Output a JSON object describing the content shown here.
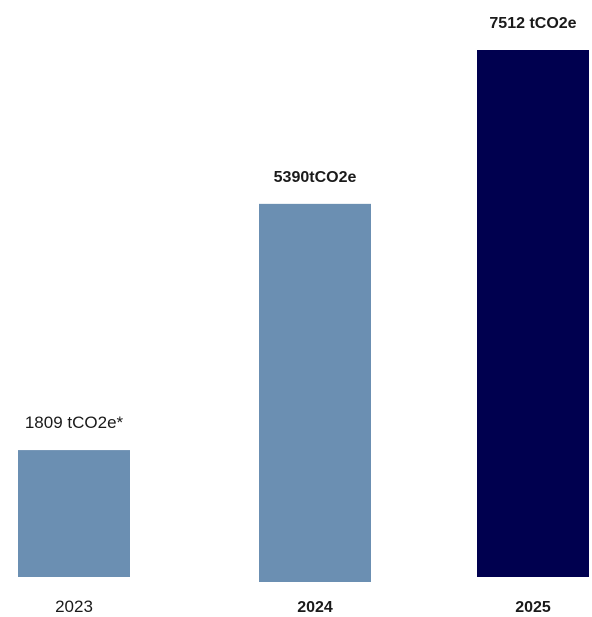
{
  "chart_data": {
    "type": "bar",
    "categories": [
      "2023",
      "2024",
      "2025"
    ],
    "values": [
      1809,
      5390,
      7512
    ],
    "data_labels": [
      "1809 tCO2e*",
      "5390tCO2e",
      "7512 tCO2e"
    ],
    "colors": [
      "#6b8fb2",
      "#6b8fb2",
      "#00004f"
    ],
    "bold": [
      false,
      true,
      true
    ],
    "unit": "tCO2e",
    "title": "",
    "xlabel": "",
    "ylabel": "",
    "ylim": [
      0,
      7512
    ],
    "grid": false,
    "legend": "none"
  }
}
